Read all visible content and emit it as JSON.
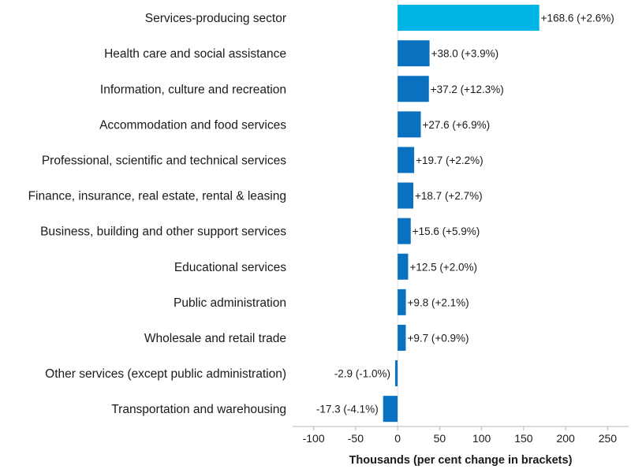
{
  "chart_data": {
    "type": "bar",
    "orientation": "horizontal",
    "title": "",
    "xlabel": "Thousands (per cent change in brackets)",
    "ylabel": "",
    "xlim": [
      -125,
      275
    ],
    "xticks": [
      -100,
      -50,
      0,
      50,
      100,
      150,
      200,
      250
    ],
    "xtick_labels": [
      "-100",
      "-50",
      "0",
      "50",
      "100",
      "150",
      "200",
      "250"
    ],
    "grid": false,
    "colors": {
      "highlight": "#00b4e6",
      "default": "#0a71c0"
    },
    "categories": [
      "Services-producing sector",
      "Health care and social assistance",
      "Information, culture and recreation",
      "Accommodation and food services",
      "Professional, scientific and technical services",
      "Finance, insurance, real estate, rental & leasing",
      "Business, building and other support services",
      "Educational services",
      "Public administration",
      "Wholesale and retail trade",
      "Other services (except public administration)",
      "Transportation and warehousing"
    ],
    "values": [
      168.6,
      38.0,
      37.2,
      27.6,
      19.7,
      18.7,
      15.6,
      12.5,
      9.8,
      9.7,
      -2.9,
      -17.3
    ],
    "percent_change": [
      2.6,
      3.9,
      12.3,
      6.9,
      2.2,
      2.7,
      5.9,
      2.0,
      2.1,
      0.9,
      -1.0,
      -4.1
    ],
    "data_labels": [
      "+168.6 (+2.6%)",
      "+38.0 (+3.9%)",
      "+37.2 (+12.3%)",
      "+27.6 (+6.9%)",
      "+19.7 (+2.2%)",
      "+18.7 (+2.7%)",
      "+15.6 (+5.9%)",
      "+12.5 (+2.0%)",
      "+9.8 (+2.1%)",
      "+9.7 (+0.9%)",
      "-2.9 (-1.0%)",
      "-17.3 (-4.1%)"
    ],
    "highlight_index": 0
  }
}
